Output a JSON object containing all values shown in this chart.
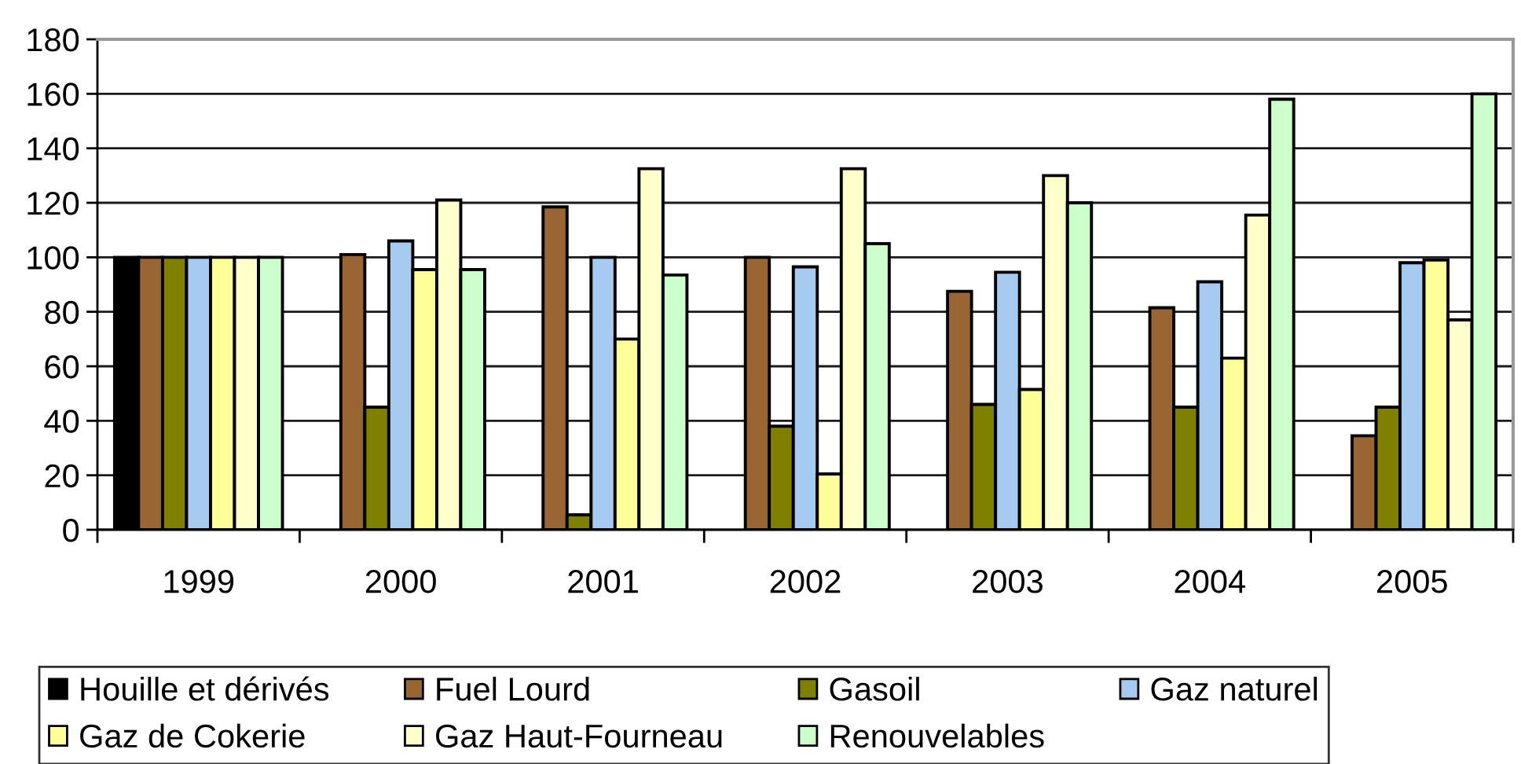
{
  "chart_data": {
    "type": "bar",
    "categories": [
      "1999",
      "2000",
      "2001",
      "2002",
      "2003",
      "2004",
      "2005"
    ],
    "series": [
      {
        "name": "Houille et dérivés",
        "color": "#000000",
        "values": [
          100,
          null,
          null,
          null,
          null,
          null,
          null
        ]
      },
      {
        "name": "Fuel Lourd",
        "color": "#996633",
        "values": [
          100,
          101,
          118.5,
          100,
          87.5,
          81.5,
          34.5
        ]
      },
      {
        "name": "Gasoil",
        "color": "#808000",
        "values": [
          100,
          45,
          5.5,
          38,
          46,
          45,
          45
        ]
      },
      {
        "name": "Gaz naturel",
        "color": "#a6caf0",
        "values": [
          100,
          106,
          100,
          96.5,
          94.5,
          91,
          98
        ]
      },
      {
        "name": "Gaz de Cokerie",
        "color": "#ffff99",
        "values": [
          100,
          95.5,
          70,
          20.5,
          51.5,
          63,
          99
        ]
      },
      {
        "name": "Gaz Haut-Fourneau",
        "color": "#ffffcc",
        "values": [
          100,
          121,
          132.5,
          132.5,
          130,
          115.5,
          77
        ]
      },
      {
        "name": "Renouvelables",
        "color": "#ccffcc",
        "values": [
          100,
          95.5,
          93.5,
          105,
          120,
          158,
          160
        ]
      }
    ],
    "ylim": [
      0,
      180
    ],
    "yticks": [
      0,
      20,
      40,
      60,
      80,
      100,
      120,
      140,
      160,
      180
    ],
    "grid": "y",
    "legend": "bottom"
  }
}
